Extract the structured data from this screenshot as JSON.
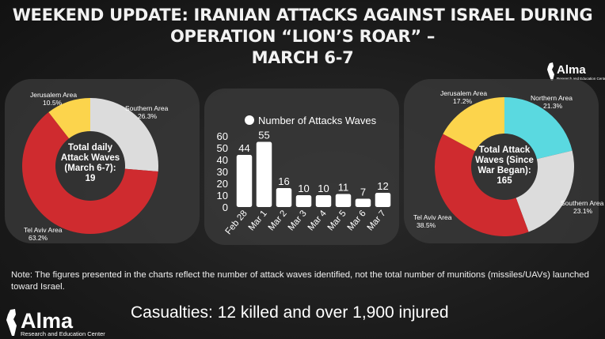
{
  "title": {
    "line1": "Weekend Update: Iranian Attacks Against Israel During Operation “Lion’s Roar” –",
    "line2": "March 6-7"
  },
  "logo": {
    "name": "Alma",
    "subtitle": "Research and Education Center"
  },
  "note": "Note: The figures presented in the charts reflect the number of attack waves identified, not the total number of munitions (missiles/UAVs) launched toward Israel.",
  "casualties": "Casualties: 12 killed and over 1,900 injured",
  "colors": {
    "red": "#cf2b2f",
    "yellow": "#fcd44c",
    "gray": "#dcdcdc",
    "cyan": "#5ad9e0"
  },
  "chart_data": [
    {
      "type": "pie",
      "center_label": [
        "Total daily",
        "Attack Waves",
        "(March 6-7):",
        "19"
      ],
      "slices": [
        {
          "name": "Jerusalem Area",
          "value": 10.5,
          "label": "10.5%",
          "color": "#fcd44c"
        },
        {
          "name": "Southern Area",
          "value": 26.3,
          "label": "26.3%",
          "color": "#dcdcdc"
        },
        {
          "name": "Tel Aviv Area",
          "value": 63.2,
          "label": "63.2%",
          "color": "#cf2b2f"
        }
      ]
    },
    {
      "type": "bar",
      "legend": "Number of Attacks Waves",
      "categories": [
        "Feb 28",
        "Mar 1",
        "Mar 2",
        "Mar 3",
        "Mar 4",
        "Mar 5",
        "Mar 6",
        "Mar 7"
      ],
      "values": [
        44,
        55,
        16,
        10,
        10,
        11,
        7,
        12
      ],
      "yticks": [
        0,
        10,
        20,
        30,
        40,
        50,
        60
      ],
      "ylim": [
        0,
        60
      ]
    },
    {
      "type": "pie",
      "center_label": [
        "Total Attack",
        "Waves (Since",
        "War Began):",
        "165"
      ],
      "slices": [
        {
          "name": "Northern Area",
          "value": 21.3,
          "label": "21.3%",
          "color": "#5ad9e0"
        },
        {
          "name": "Southern Area",
          "value": 23.1,
          "label": "23.1%",
          "color": "#dcdcdc"
        },
        {
          "name": "Tel Aviv Area",
          "value": 38.5,
          "label": "38.5%",
          "color": "#cf2b2f"
        },
        {
          "name": "Jerusalem Area",
          "value": 17.2,
          "label": "17.2%",
          "color": "#fcd44c"
        }
      ]
    }
  ]
}
